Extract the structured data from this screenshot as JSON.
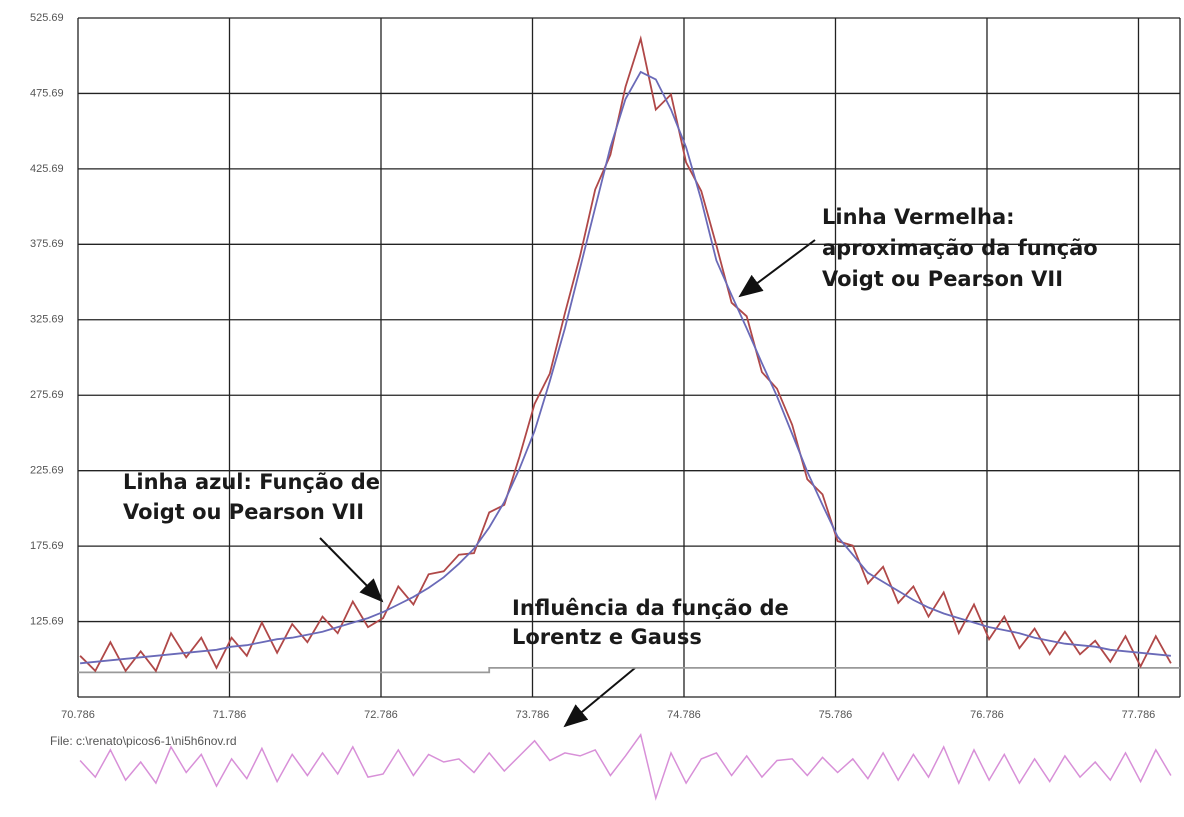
{
  "chart_data": {
    "type": "line",
    "x": [
      70.8,
      70.9,
      71.0,
      71.1,
      71.2,
      71.3,
      71.4,
      71.5,
      71.6,
      71.7,
      71.8,
      71.9,
      72.0,
      72.1,
      72.2,
      72.3,
      72.4,
      72.5,
      72.6,
      72.7,
      72.8,
      72.9,
      73.0,
      73.1,
      73.2,
      73.3,
      73.4,
      73.5,
      73.6,
      73.7,
      73.8,
      73.9,
      74.0,
      74.1,
      74.2,
      74.3,
      74.4,
      74.5,
      74.6,
      74.7,
      74.8,
      74.9,
      75.0,
      75.1,
      75.2,
      75.3,
      75.4,
      75.5,
      75.6,
      75.7,
      75.8,
      75.9,
      76.0,
      76.1,
      76.2,
      76.3,
      76.4,
      76.5,
      76.6,
      76.7,
      76.8,
      76.9,
      77.0,
      77.1,
      77.2,
      77.3,
      77.4,
      77.5,
      77.6,
      77.7,
      77.8,
      77.9,
      78.0
    ],
    "series": [
      {
        "color": "#b04848",
        "values": [
          103,
          93,
          112,
          93,
          106,
          93,
          118,
          102,
          115,
          95,
          115,
          103,
          125,
          105,
          124,
          112,
          129,
          118,
          139,
          122,
          128,
          149,
          137,
          157,
          159,
          170,
          171,
          198,
          203,
          235,
          270,
          290,
          330,
          368,
          412,
          435,
          480,
          512,
          465,
          475,
          430,
          411,
          375,
          337,
          328,
          291,
          280,
          256,
          220,
          210,
          179,
          176,
          151,
          162,
          138,
          149,
          129,
          145,
          118,
          137,
          114,
          129,
          108,
          121,
          104,
          119,
          104,
          113,
          99,
          116,
          96,
          116,
          98
        ]
      },
      {
        "color": "#6a6ab8",
        "values": [
          98,
          99,
          100,
          101,
          102,
          103,
          104,
          105,
          106,
          107,
          109,
          110,
          112,
          114,
          115,
          117,
          119,
          122,
          125,
          128,
          132,
          137,
          142,
          148,
          155,
          164,
          174,
          188,
          205,
          227,
          252,
          285,
          320,
          360,
          400,
          440,
          472,
          490,
          485,
          465,
          440,
          405,
          365,
          342,
          320,
          297,
          275,
          250,
          225,
          203,
          182,
          170,
          158,
          152,
          146,
          140,
          135,
          131,
          128,
          125,
          122,
          120,
          118,
          115,
          113,
          111,
          110,
          109,
          107,
          106,
          105,
          104,
          103
        ]
      },
      {
        "color": "#999999",
        "x": [
          70.786,
          73.5,
          73.5,
          78.06
        ],
        "values": [
          92,
          92,
          95,
          95
        ]
      },
      {
        "color": "#d890d8",
        "panel": "lower",
        "values": [
          5,
          -6,
          12,
          -8,
          4,
          -10,
          14,
          -3,
          9,
          -12,
          6,
          -7,
          13,
          -9,
          9,
          -5,
          10,
          -4,
          14,
          -6,
          -4,
          12,
          -5,
          9,
          4,
          6,
          -3,
          10,
          -2,
          8,
          18,
          5,
          10,
          8,
          12,
          -5,
          8,
          22,
          -20,
          10,
          -10,
          6,
          10,
          -5,
          8,
          -6,
          5,
          6,
          -5,
          7,
          -3,
          6,
          -7,
          10,
          -8,
          9,
          -6,
          14,
          -10,
          12,
          -8,
          9,
          -10,
          6,
          -9,
          8,
          -6,
          4,
          -8,
          10,
          -9,
          12,
          -5
        ]
      }
    ],
    "xlim": [
      70.786,
      78.06
    ],
    "ylim": [
      75.69,
      525.69
    ],
    "xticks": [
      70.786,
      71.786,
      72.786,
      73.786,
      74.786,
      75.786,
      76.786,
      77.786
    ],
    "yticks": [
      125.69,
      175.69,
      225.69,
      275.69,
      325.69,
      375.69,
      425.69,
      475.69,
      525.69
    ],
    "grid": true,
    "file_label": "File: c:\\renato\\picos6-1\\ni5h6nov.rd",
    "annotations": [
      {
        "lines": [
          "Linha Vermelha:",
          "aproximação da função",
          "Voigt ou Pearson VII"
        ]
      },
      {
        "lines": [
          "Linha azul: Função de",
          "Voigt ou Pearson VII"
        ]
      },
      {
        "lines": [
          "Influência da função de",
          "Lorentz e Gauss"
        ]
      }
    ]
  }
}
